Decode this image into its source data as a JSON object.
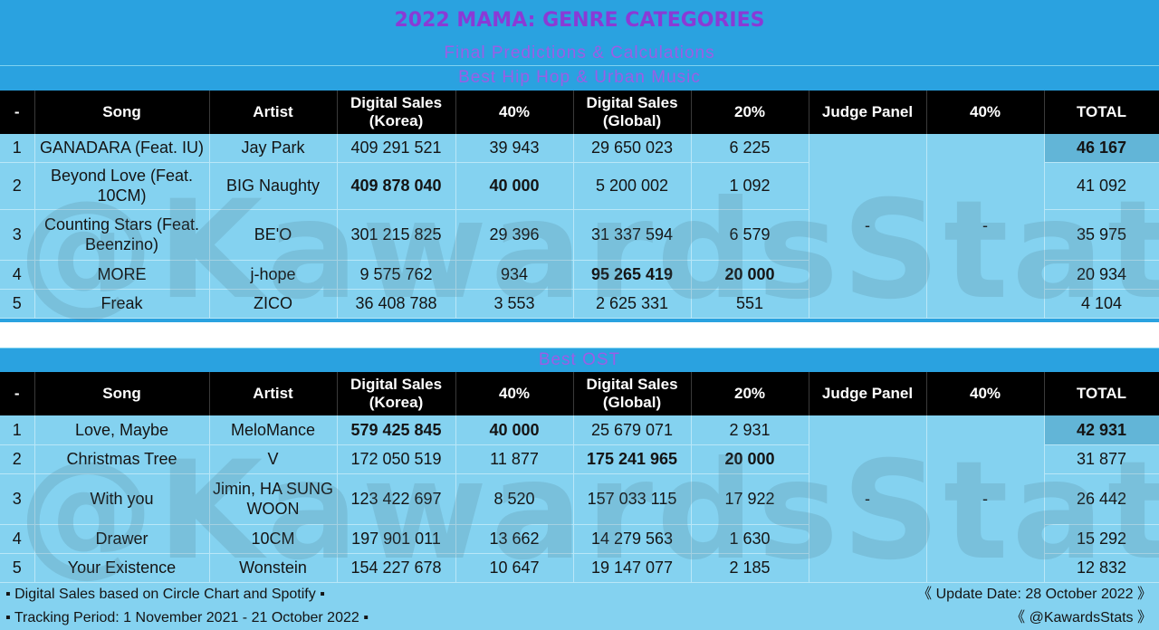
{
  "title": "2022 MAMA: GENRE CATEGORIES",
  "subtitle": "Final Predictions & Calculations",
  "columns": [
    "-",
    "Song",
    "Artist",
    "Digital Sales (Korea)",
    "40%",
    "Digital Sales (Global)",
    "20%",
    "Judge Panel",
    "40%",
    "TOTAL"
  ],
  "watermark": "@KawardsStats",
  "hiphop": {
    "category": "Best Hip Hop & Urban Music",
    "rows": [
      {
        "rank": "1",
        "song": "GANADARA (Feat. IU)",
        "artist": "Jay Park",
        "dsk": "409 291 521",
        "p1": "39 943",
        "dsg": "29 650 023",
        "p2": "6 225",
        "total": "46 167"
      },
      {
        "rank": "2",
        "song": "Beyond Love (Feat. 10CM)",
        "artist": "BIG Naughty",
        "dsk": "409 878 040",
        "p1": "40 000",
        "dsg": "5 200 002",
        "p2": "1 092",
        "total": "41 092"
      },
      {
        "rank": "3",
        "song": "Counting Stars (Feat. Beenzino)",
        "artist": "BE'O",
        "dsk": "301 215 825",
        "p1": "29 396",
        "dsg": "31 337 594",
        "p2": "6 579",
        "total": "35 975"
      },
      {
        "rank": "4",
        "song": "MORE",
        "artist": "j-hope",
        "dsk": "9 575 762",
        "p1": "934",
        "dsg": "95 265 419",
        "p2": "20 000",
        "total": "20 934"
      },
      {
        "rank": "5",
        "song": "Freak",
        "artist": "ZICO",
        "dsk": "36 408 788",
        "p1": "3 553",
        "dsg": "2 625 331",
        "p2": "551",
        "total": "4 104"
      }
    ],
    "judge": "-",
    "judge_pct": "-"
  },
  "ost": {
    "category": "Best OST",
    "rows": [
      {
        "rank": "1",
        "song": "Love, Maybe",
        "artist": "MeloMance",
        "dsk": "579 425 845",
        "p1": "40 000",
        "dsg": "25 679 071",
        "p2": "2 931",
        "total": "42 931"
      },
      {
        "rank": "2",
        "song": "Christmas Tree",
        "artist": "V",
        "dsk": "172 050 519",
        "p1": "11 877",
        "dsg": "175 241 965",
        "p2": "20 000",
        "total": "31 877"
      },
      {
        "rank": "3",
        "song": "With you",
        "artist": "Jimin, HA SUNG WOON",
        "dsk": "123 422 697",
        "p1": "8 520",
        "dsg": "157 033 115",
        "p2": "17 922",
        "total": "26 442"
      },
      {
        "rank": "4",
        "song": "Drawer",
        "artist": "10CM",
        "dsk": "197 901 011",
        "p1": "13 662",
        "dsg": "14 279 563",
        "p2": "1 630",
        "total": "15 292"
      },
      {
        "rank": "5",
        "song": "Your Existence",
        "artist": "Wonstein",
        "dsk": "154 227 678",
        "p1": "10 647",
        "dsg": "19 147 077",
        "p2": "2 185",
        "total": "12 832"
      }
    ],
    "judge": "-",
    "judge_pct": "-"
  },
  "footer": {
    "left1": "▪ Digital Sales based on Circle Chart and Spotify ▪",
    "left2": "▪ Tracking Period: 1 November 2021 - 21 October 2022 ▪",
    "right1": "《 Update Date: 28 October 2022 》",
    "right2": "《 @KawardsStats 》"
  }
}
